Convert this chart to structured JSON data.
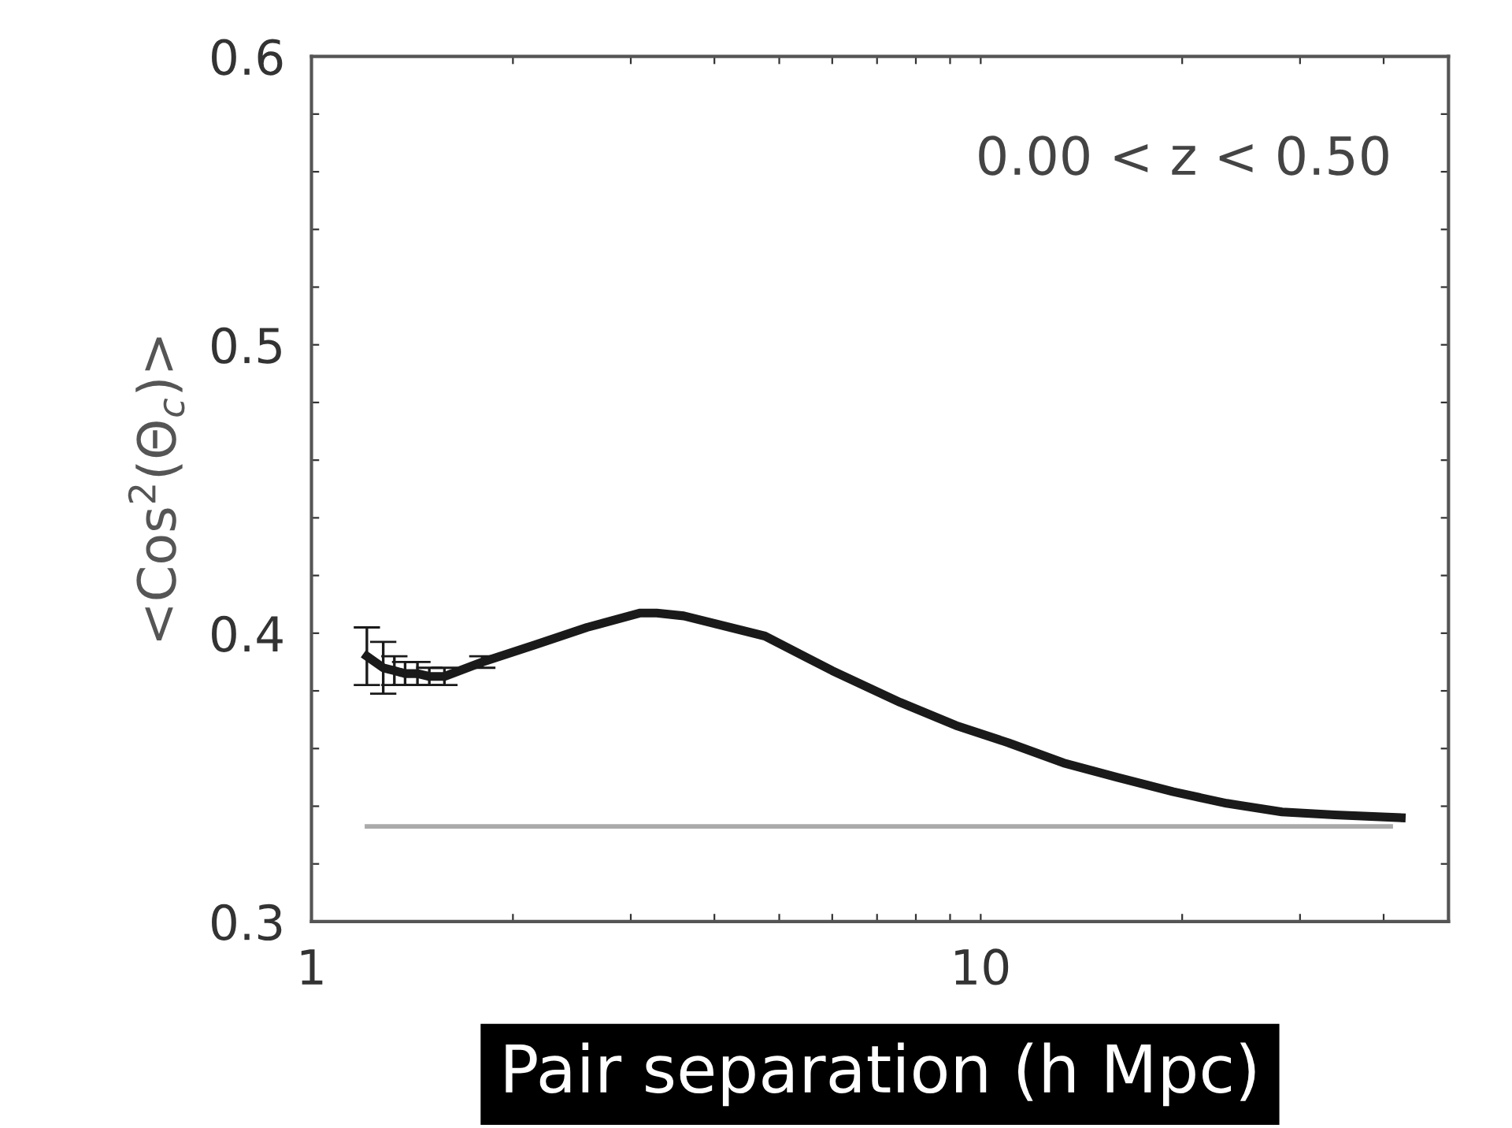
{
  "chart_data": {
    "type": "line",
    "xlabel": "Pair separation (h Mpc)",
    "ylabel": "<Cos$^{2}$(Θ$_{c}$)>",
    "annotations": [
      "0.00 < z < 0.50"
    ],
    "log": "x",
    "xlim": [
      1,
      50
    ],
    "ylim": [
      0.3,
      0.6
    ],
    "xticks": [
      1,
      {
        "value": 2,
        "label": null
      },
      {
        "value": 3,
        "label": null
      },
      {
        "value": 4,
        "label": null
      },
      {
        "value": 5,
        "label": null
      },
      {
        "value": 6,
        "label": null
      },
      {
        "value": 7,
        "label": null
      },
      {
        "value": 8,
        "label": null
      },
      {
        "value": 9,
        "label": null
      },
      10,
      {
        "value": 20,
        "label": null
      },
      {
        "value": 30,
        "label": null
      },
      {
        "value": 40,
        "label": null
      }
    ],
    "yticks": [
      0.3,
      {
        "value": 0.32,
        "label": null
      },
      {
        "value": 0.34,
        "label": null
      },
      {
        "value": 0.36,
        "label": null
      },
      {
        "value": 0.38,
        "label": null
      },
      0.4,
      {
        "value": 0.42,
        "label": null
      },
      {
        "value": 0.44,
        "label": null
      },
      {
        "value": 0.46,
        "label": null
      },
      {
        "value": 0.48,
        "label": null
      },
      0.5,
      {
        "value": 0.52,
        "label": null
      },
      {
        "value": 0.54,
        "label": null
      },
      {
        "value": 0.56,
        "label": null
      },
      {
        "value": 0.58,
        "label": null
      },
      0.6
    ],
    "grid": false,
    "marker": "none",
    "line_style": "solid",
    "series": [
      {
        "color": "#1a1a1a",
        "x": [
          1.21,
          1.28,
          1.33,
          1.38,
          1.44,
          1.5,
          1.58,
          1.8,
          2.16,
          2.58,
          3.1,
          3.28,
          3.6,
          4.76,
          6.0,
          7.58,
          9.18,
          11.0,
          13.3,
          16.0,
          19.4,
          23.3,
          28.2,
          33.8,
          42.5
        ],
        "values": [
          0.392,
          0.388,
          0.387,
          0.386,
          0.386,
          0.385,
          0.385,
          0.39,
          0.396,
          0.402,
          0.407,
          0.407,
          0.406,
          0.399,
          0.387,
          0.376,
          0.368,
          0.362,
          0.355,
          0.35,
          0.345,
          0.341,
          0.338,
          0.337,
          0.336
        ],
        "errors": [
          0.01,
          0.009,
          0.005,
          0.004,
          0.004,
          0.003,
          0.003,
          0.002,
          null,
          null,
          null,
          null,
          null,
          null,
          null,
          null,
          null,
          null,
          null,
          null,
          null,
          null,
          null,
          null,
          null
        ]
      },
      {
        "color": "#aaaaaa",
        "x": [
          1.21,
          41
        ],
        "values": [
          0.333,
          0.333
        ]
      }
    ]
  }
}
